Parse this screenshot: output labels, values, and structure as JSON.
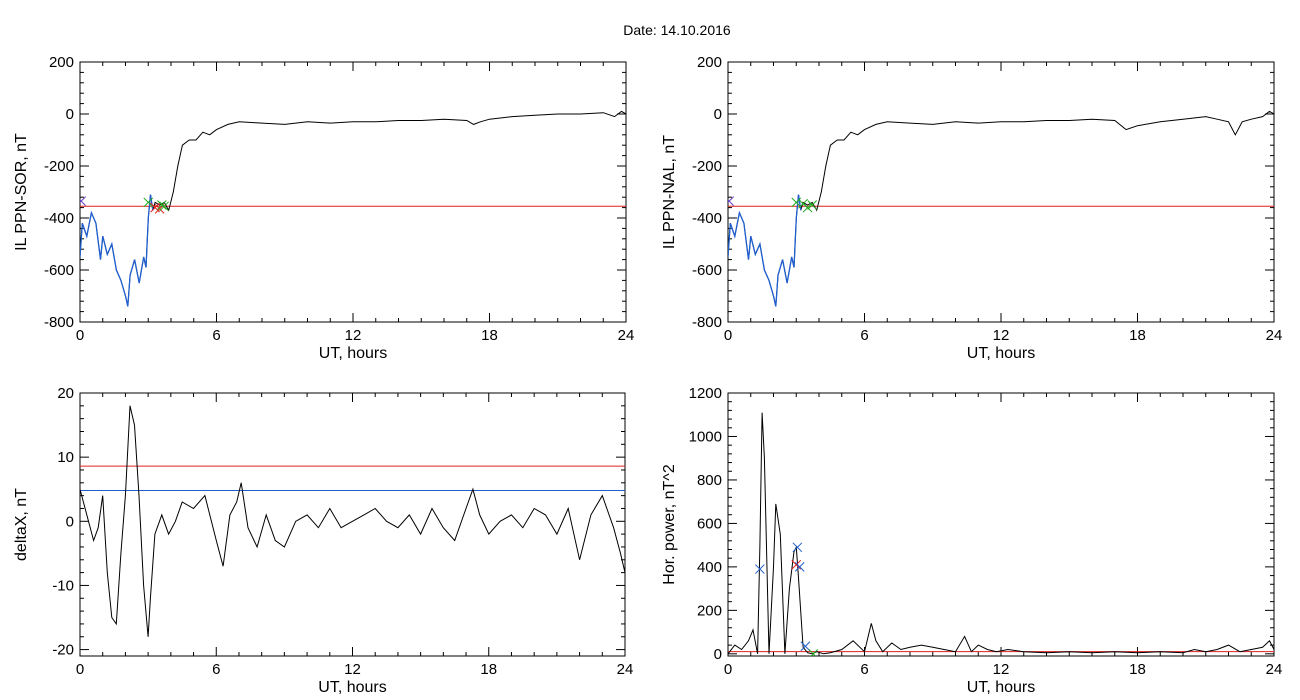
{
  "figure": {
    "title": "Date:  14.10.2016",
    "colors": {
      "trace": "#000000",
      "blue": "#1f5fd0",
      "red": "#e02020",
      "green": "#22aa22",
      "purple": "#6a3fc8"
    }
  },
  "chart_data": [
    {
      "id": "il_sor",
      "type": "line",
      "xlabel": "UT, hours",
      "ylabel": "IL PPN-SOR, nT",
      "xlim": [
        0,
        24
      ],
      "ylim": [
        -800,
        200
      ],
      "xticks": [
        0,
        6,
        12,
        18,
        24
      ],
      "yticks": [
        -800,
        -600,
        -400,
        -200,
        0,
        200
      ],
      "threshold": {
        "y": -355,
        "color": "#e02020"
      },
      "highlight": {
        "x_range": [
          0,
          3.2
        ],
        "color": "#1f5fd0"
      },
      "series": [
        {
          "x": [
            0,
            0.1,
            0.3,
            0.5,
            0.7,
            0.9,
            1.0,
            1.2,
            1.4,
            1.6,
            1.8,
            2.0,
            2.1,
            2.2,
            2.4,
            2.6,
            2.8,
            2.9,
            3.0,
            3.1,
            3.2,
            3.3,
            3.5,
            3.7,
            3.9,
            4.1,
            4.3,
            4.5,
            4.8,
            5.1,
            5.4,
            5.7,
            6.0,
            6.5,
            7.0,
            8.0,
            9.0,
            10.0,
            11.0,
            12.0,
            13.0,
            14.0,
            15.0,
            16.0,
            17.0,
            17.3,
            17.6,
            18.0,
            19.0,
            20.0,
            21.0,
            22.0,
            23.0,
            23.5,
            23.8,
            24.0
          ],
          "y": [
            -550,
            -420,
            -470,
            -380,
            -420,
            -560,
            -470,
            -540,
            -500,
            -600,
            -640,
            -700,
            -740,
            -620,
            -560,
            -650,
            -550,
            -590,
            -400,
            -310,
            -370,
            -340,
            -350,
            -340,
            -370,
            -300,
            -200,
            -120,
            -100,
            -100,
            -70,
            -80,
            -60,
            -40,
            -30,
            -35,
            -40,
            -30,
            -35,
            -30,
            -30,
            -25,
            -25,
            -20,
            -25,
            -40,
            -30,
            -20,
            -10,
            -5,
            0,
            0,
            5,
            -10,
            10,
            0
          ]
        }
      ],
      "markers": [
        {
          "x": 0.05,
          "y": -335,
          "color": "#6a3fc8"
        },
        {
          "x": 3.0,
          "y": -340,
          "color": "#22aa22"
        },
        {
          "x": 3.3,
          "y": -360,
          "color": "#e02020"
        },
        {
          "x": 3.5,
          "y": -365,
          "color": "#e02020"
        },
        {
          "x": 3.6,
          "y": -350,
          "color": "#22aa22"
        },
        {
          "x": 3.7,
          "y": -355,
          "color": "#22aa22"
        }
      ]
    },
    {
      "id": "il_nal",
      "type": "line",
      "xlabel": "UT, hours",
      "ylabel": "IL PPN-NAL, nT",
      "xlim": [
        0,
        24
      ],
      "ylim": [
        -800,
        200
      ],
      "xticks": [
        0,
        6,
        12,
        18,
        24
      ],
      "yticks": [
        -800,
        -600,
        -400,
        -200,
        0,
        200
      ],
      "threshold": {
        "y": -355,
        "color": "#e02020"
      },
      "highlight": {
        "x_range": [
          0,
          3.2
        ],
        "color": "#1f5fd0"
      },
      "series": [
        {
          "x": [
            0,
            0.1,
            0.3,
            0.5,
            0.7,
            0.9,
            1.0,
            1.2,
            1.4,
            1.6,
            1.8,
            2.0,
            2.1,
            2.2,
            2.4,
            2.6,
            2.8,
            2.9,
            3.0,
            3.1,
            3.2,
            3.3,
            3.5,
            3.7,
            3.9,
            4.1,
            4.3,
            4.5,
            4.8,
            5.1,
            5.4,
            5.7,
            6.0,
            6.5,
            7.0,
            8.0,
            9.0,
            10.0,
            11.0,
            12.0,
            13.0,
            14.0,
            15.0,
            16.0,
            17.0,
            17.5,
            18.0,
            19.0,
            20.0,
            21.0,
            21.5,
            22.0,
            22.3,
            22.6,
            23.0,
            23.5,
            23.8,
            24.0
          ],
          "y": [
            -550,
            -420,
            -470,
            -380,
            -420,
            -560,
            -470,
            -540,
            -500,
            -600,
            -640,
            -700,
            -740,
            -620,
            -560,
            -650,
            -550,
            -590,
            -400,
            -310,
            -370,
            -340,
            -350,
            -340,
            -370,
            -300,
            -200,
            -120,
            -100,
            -100,
            -70,
            -80,
            -60,
            -40,
            -30,
            -35,
            -40,
            -30,
            -35,
            -30,
            -30,
            -25,
            -25,
            -20,
            -25,
            -60,
            -45,
            -30,
            -20,
            -10,
            -20,
            -30,
            -80,
            -30,
            -20,
            -10,
            10,
            0
          ]
        }
      ],
      "markers": [
        {
          "x": 0.05,
          "y": -335,
          "color": "#6a3fc8"
        },
        {
          "x": 3.0,
          "y": -340,
          "color": "#22aa22"
        },
        {
          "x": 3.3,
          "y": -345,
          "color": "#22aa22"
        },
        {
          "x": 3.5,
          "y": -360,
          "color": "#22aa22"
        },
        {
          "x": 3.7,
          "y": -350,
          "color": "#22aa22"
        }
      ]
    },
    {
      "id": "deltax",
      "type": "line",
      "xlabel": "UT, hours",
      "ylabel": "deltaX, nT",
      "xlim": [
        0,
        24
      ],
      "ylim": [
        -21,
        20
      ],
      "xticks": [
        0,
        6,
        12,
        18,
        24
      ],
      "yticks": [
        -20,
        -10,
        0,
        10,
        20
      ],
      "hlines": [
        {
          "y": 8.6,
          "color": "#e02020"
        },
        {
          "y": 4.8,
          "color": "#1f5fd0"
        }
      ],
      "series": [
        {
          "x": [
            0,
            0.3,
            0.6,
            0.8,
            1.0,
            1.2,
            1.4,
            1.6,
            1.8,
            2.0,
            2.2,
            2.4,
            2.6,
            2.8,
            3.0,
            3.1,
            3.3,
            3.6,
            3.9,
            4.2,
            4.5,
            5.0,
            5.5,
            6.0,
            6.3,
            6.6,
            6.9,
            7.1,
            7.4,
            7.8,
            8.2,
            8.6,
            9.0,
            9.5,
            10.0,
            10.5,
            11.0,
            11.5,
            12.0,
            12.5,
            13.0,
            13.5,
            14.0,
            14.5,
            15.0,
            15.5,
            16.0,
            16.5,
            17.0,
            17.3,
            17.6,
            18.0,
            18.5,
            19.0,
            19.5,
            20.0,
            20.5,
            21.0,
            21.5,
            22.0,
            22.5,
            23.0,
            23.5,
            23.8,
            24.0
          ],
          "y": [
            5,
            1,
            -3,
            -1,
            4,
            -8,
            -15,
            -16,
            -5,
            4,
            18,
            15,
            4,
            -10,
            -18,
            -12,
            -2,
            1,
            -2,
            0,
            3,
            2,
            4,
            -3,
            -7,
            1,
            3,
            6,
            -1,
            -4,
            1,
            -3,
            -4,
            0,
            1,
            -1,
            2,
            -1,
            0,
            1,
            2,
            0,
            -1,
            1,
            -2,
            2,
            -1,
            -3,
            2,
            5,
            1,
            -2,
            0,
            1,
            -1,
            2,
            1,
            -2,
            2,
            -6,
            1,
            4,
            -1,
            -5,
            -8
          ]
        }
      ]
    },
    {
      "id": "hor_power",
      "type": "line",
      "xlabel": "UT, hours",
      "ylabel": "Hor. power, nT^2",
      "xlim": [
        0,
        24
      ],
      "ylim": [
        -10,
        1200
      ],
      "xticks": [
        0,
        6,
        12,
        18,
        24
      ],
      "yticks": [
        0,
        200,
        400,
        600,
        800,
        1000,
        1200
      ],
      "hlines": [
        {
          "y": 10,
          "color": "#e02020"
        }
      ],
      "series": [
        {
          "x": [
            0,
            0.3,
            0.6,
            0.9,
            1.1,
            1.3,
            1.4,
            1.5,
            1.6,
            1.8,
            2.0,
            2.1,
            2.3,
            2.5,
            2.7,
            2.9,
            3.0,
            3.1,
            3.3,
            3.5,
            3.7,
            3.9,
            4.2,
            4.5,
            5.0,
            5.5,
            6.0,
            6.3,
            6.5,
            6.8,
            7.2,
            7.6,
            8.0,
            8.5,
            9.0,
            9.5,
            10.0,
            10.4,
            10.7,
            11.0,
            11.4,
            11.8,
            12.3,
            13.0,
            14.0,
            15.0,
            16.0,
            17.0,
            18.0,
            19.0,
            20.0,
            20.5,
            21.0,
            21.5,
            22.0,
            22.5,
            23.0,
            23.5,
            23.8,
            24.0
          ],
          "y": [
            0,
            40,
            20,
            60,
            110,
            0,
            500,
            1110,
            900,
            0,
            400,
            690,
            550,
            0,
            300,
            470,
            490,
            350,
            30,
            5,
            0,
            10,
            0,
            5,
            20,
            60,
            10,
            140,
            60,
            10,
            50,
            20,
            30,
            40,
            30,
            20,
            10,
            80,
            10,
            40,
            20,
            10,
            20,
            10,
            5,
            10,
            5,
            10,
            5,
            10,
            5,
            20,
            10,
            20,
            40,
            10,
            20,
            30,
            60,
            20
          ]
        }
      ],
      "markers": [
        {
          "x": 1.4,
          "y": 390,
          "color": "#1f5fd0"
        },
        {
          "x": 3.05,
          "y": 490,
          "color": "#1f5fd0"
        },
        {
          "x": 3.0,
          "y": 410,
          "color": "#e02020"
        },
        {
          "x": 3.15,
          "y": 400,
          "color": "#1f5fd0"
        },
        {
          "x": 3.4,
          "y": 35,
          "color": "#1f5fd0"
        },
        {
          "x": 3.75,
          "y": 0,
          "color": "#22aa22"
        }
      ]
    }
  ]
}
